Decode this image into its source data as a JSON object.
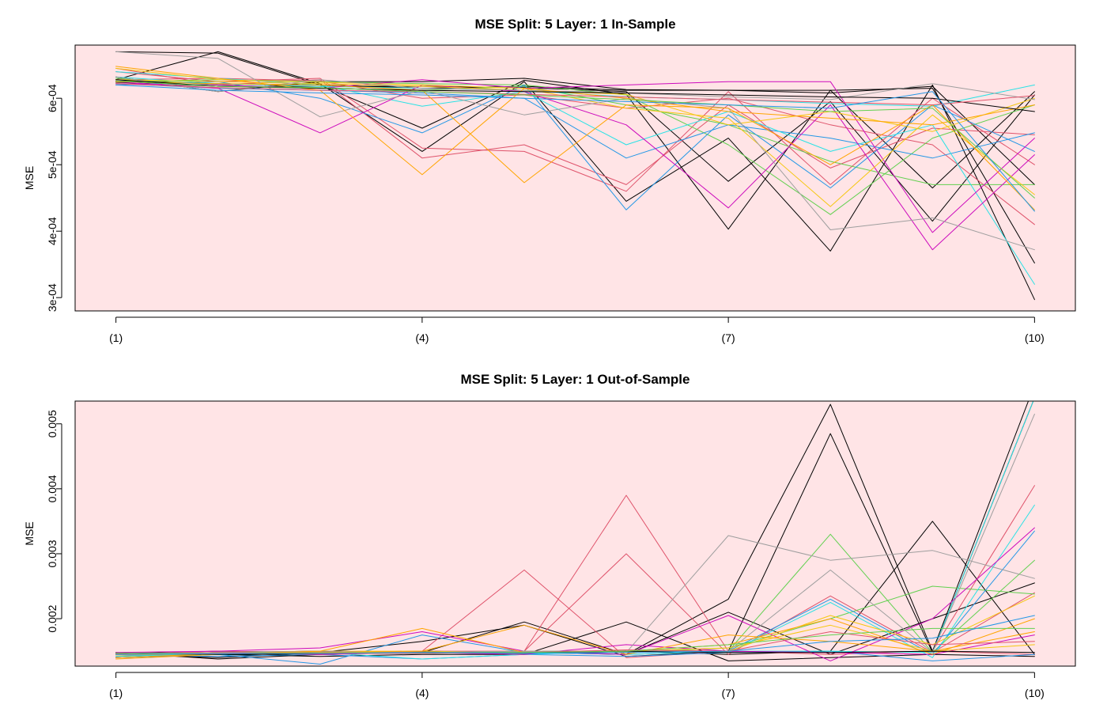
{
  "chart_data": [
    {
      "type": "line",
      "title": "MSE Split: 5 Layer: 1 In-Sample",
      "xlabel": "",
      "ylabel": "MSE",
      "x": [
        1,
        2,
        3,
        4,
        5,
        6,
        7,
        8,
        9,
        10
      ],
      "x_ticks": [
        1,
        4,
        7,
        10
      ],
      "x_tick_labels": [
        "(1)",
        "(4)",
        "(7)",
        "(10)"
      ],
      "xlim": [
        0.6,
        10.4
      ],
      "y_ticks": [
        0.0003,
        0.0004,
        0.0005,
        0.0006
      ],
      "y_tick_labels": [
        "3e-04",
        "4e-04",
        "5e-04",
        "6e-04"
      ],
      "ylim": [
        0.00028,
        0.00068
      ],
      "grid": false,
      "legend": "none",
      "background": "#FFE4E6",
      "series": [
        {
          "color": "#000000",
          "values": [
            0.00067,
            0.000668,
            0.00062,
            0.000555,
            0.000627,
            0.000606,
            0.000403,
            0.000612,
            0.000615,
            0.000352
          ]
        },
        {
          "color": "#000000",
          "values": [
            0.000628,
            0.00067,
            0.000622,
            0.00052,
            0.000625,
            0.000445,
            0.00054,
            0.00037,
            0.00062,
            0.000297
          ]
        },
        {
          "color": "#000000",
          "values": [
            0.000632,
            0.00061,
            0.000625,
            0.000625,
            0.00063,
            0.000613,
            0.000612,
            0.000612,
            0.000465,
            0.00061
          ]
        },
        {
          "color": "#000000",
          "values": [
            0.000624,
            0.000618,
            0.000618,
            0.000618,
            0.000616,
            0.00061,
            0.000475,
            0.000595,
            0.000415,
            0.000605
          ]
        },
        {
          "color": "#000000",
          "values": [
            0.000626,
            0.000622,
            0.00062,
            0.000615,
            0.000618,
            0.000612,
            0.000612,
            0.000608,
            0.000618,
            0.00047
          ]
        },
        {
          "color": "#DF536B",
          "values": [
            0.000645,
            0.00062,
            0.000628,
            0.00051,
            0.00053,
            0.00047,
            0.00059,
            0.000495,
            0.000555,
            0.000545
          ]
        },
        {
          "color": "#DF536B",
          "values": [
            0.00064,
            0.000625,
            0.00063,
            0.000525,
            0.00052,
            0.00046,
            0.00061,
            0.00047,
            0.0006,
            0.0005
          ]
        },
        {
          "color": "#DF536B",
          "values": [
            0.000628,
            0.00063,
            0.000626,
            0.0006,
            0.000605,
            0.000585,
            0.0006,
            0.00056,
            0.00053,
            0.00041
          ]
        },
        {
          "color": "#61D04F",
          "values": [
            0.000625,
            0.000628,
            0.000625,
            0.000622,
            0.00062,
            0.000605,
            0.00053,
            0.000425,
            0.00054,
            0.00059
          ]
        },
        {
          "color": "#61D04F",
          "values": [
            0.00063,
            0.00062,
            0.000615,
            0.000612,
            0.000618,
            0.00059,
            0.00056,
            0.000505,
            0.00047,
            0.00047
          ]
        },
        {
          "color": "#2297E6",
          "values": [
            0.00062,
            0.000625,
            0.0006,
            0.000548,
            0.00062,
            0.000432,
            0.000575,
            0.000465,
            0.00059,
            0.00052
          ]
        },
        {
          "color": "#2297E6",
          "values": [
            0.000622,
            0.000615,
            0.000612,
            0.000608,
            0.0006,
            0.00051,
            0.00056,
            0.00054,
            0.00051,
            0.000548
          ]
        },
        {
          "color": "#28E2E5",
          "values": [
            0.00064,
            0.00063,
            0.00062,
            0.000588,
            0.00061,
            0.00053,
            0.00058,
            0.00052,
            0.00056,
            0.00032
          ]
        },
        {
          "color": "#28E2E5",
          "values": [
            0.000632,
            0.000622,
            0.000618,
            0.000615,
            0.000612,
            0.000602,
            0.000598,
            0.000592,
            0.000588,
            0.00062
          ]
        },
        {
          "color": "#CD0BBC",
          "values": [
            0.000625,
            0.000615,
            0.000548,
            0.00062,
            0.00061,
            0.00056,
            0.000435,
            0.00059,
            0.000372,
            0.000515
          ]
        },
        {
          "color": "#CD0BBC",
          "values": [
            0.000622,
            0.00062,
            0.000615,
            0.000628,
            0.000615,
            0.00062,
            0.000625,
            0.000625,
            0.000398,
            0.00054
          ]
        },
        {
          "color": "#F5C710",
          "values": [
            0.000645,
            0.000628,
            0.000624,
            0.00062,
            0.000615,
            0.000585,
            0.00057,
            0.000437,
            0.000575,
            0.000455
          ]
        },
        {
          "color": "#F5C710",
          "values": [
            0.000628,
            0.000625,
            0.000622,
            0.000618,
            0.000612,
            0.000606,
            0.00056,
            0.00058,
            0.00055,
            0.0006
          ]
        },
        {
          "color": "#9E9E9E",
          "values": [
            0.00067,
            0.00066,
            0.000572,
            0.000612,
            0.000575,
            0.0006,
            0.000585,
            0.000402,
            0.00042,
            0.000372
          ]
        },
        {
          "color": "#9E9E9E",
          "values": [
            0.000632,
            0.00061,
            0.000628,
            0.000615,
            0.000612,
            0.000608,
            0.000602,
            0.000598,
            0.000622,
            0.000598
          ]
        },
        {
          "color": "#FFA500",
          "values": [
            0.000648,
            0.00063,
            0.000612,
            0.000485,
            0.000615,
            0.0006,
            0.00058,
            0.00057,
            0.00056,
            0.00059
          ]
        },
        {
          "color": "#FFA500",
          "values": [
            0.000625,
            0.000622,
            0.00062,
            0.000612,
            0.000473,
            0.00059,
            0.000585,
            0.0005,
            0.00059,
            0.000432
          ]
        },
        {
          "color": "#000000",
          "values": [
            0.000628,
            0.000618,
            0.000615,
            0.000612,
            0.00061,
            0.000608,
            0.000605,
            0.000602,
            0.0006,
            0.00058
          ]
        },
        {
          "color": "#DF536B",
          "values": [
            0.000622,
            0.000616,
            0.000612,
            0.00061,
            0.000606,
            0.000602,
            0.000598,
            0.000594,
            0.00059,
            0.000604
          ]
        },
        {
          "color": "#61D04F",
          "values": [
            0.000626,
            0.000618,
            0.000616,
            0.00061,
            0.000605,
            0.000598,
            0.00059,
            0.00058,
            0.000585,
            0.00045
          ]
        },
        {
          "color": "#2297E6",
          "values": [
            0.00062,
            0.000612,
            0.000608,
            0.000605,
            0.0006,
            0.000595,
            0.00059,
            0.000585,
            0.00061,
            0.00043
          ]
        }
      ]
    },
    {
      "type": "line",
      "title": "MSE Split: 5 Layer: 1 Out-of-Sample",
      "xlabel": "",
      "ylabel": "MSE",
      "x": [
        1,
        2,
        3,
        4,
        5,
        6,
        7,
        8,
        9,
        10
      ],
      "x_ticks": [
        1,
        4,
        7,
        10
      ],
      "x_tick_labels": [
        "(1)",
        "(4)",
        "(7)",
        "(10)"
      ],
      "xlim": [
        0.6,
        10.4
      ],
      "y_ticks": [
        0.002,
        0.003,
        0.004,
        0.005
      ],
      "y_tick_labels": [
        "0.002",
        "0.003",
        "0.004",
        "0.005"
      ],
      "ylim": [
        0.00127,
        0.00535
      ],
      "grid": false,
      "legend": "none",
      "background": "#FFE4E6",
      "series": [
        {
          "color": "#000000",
          "values": [
            0.00148,
            0.00138,
            0.00145,
            0.0015,
            0.00148,
            0.00145,
            0.0023,
            0.0053,
            0.0015,
            0.0056
          ]
        },
        {
          "color": "#000000",
          "values": [
            0.00145,
            0.0014,
            0.00148,
            0.00165,
            0.0019,
            0.00142,
            0.0015,
            0.00485,
            0.00148,
            0.0054
          ]
        },
        {
          "color": "#000000",
          "values": [
            0.00146,
            0.0015,
            0.00148,
            0.0015,
            0.00148,
            0.0015,
            0.00145,
            0.0015,
            0.0035,
            0.00145
          ]
        },
        {
          "color": "#000000",
          "values": [
            0.00145,
            0.00148,
            0.0015,
            0.00148,
            0.00195,
            0.00145,
            0.0021,
            0.00145,
            0.002,
            0.00255
          ]
        },
        {
          "color": "#000000",
          "values": [
            0.0014,
            0.00145,
            0.00142,
            0.00145,
            0.00145,
            0.00195,
            0.00135,
            0.0014,
            0.00145,
            0.00142
          ]
        },
        {
          "color": "#DF536B",
          "values": [
            0.00145,
            0.0015,
            0.00148,
            0.0015,
            0.00275,
            0.0014,
            0.0015,
            0.00145,
            0.0015,
            0.00145
          ]
        },
        {
          "color": "#DF536B",
          "values": [
            0.00142,
            0.00148,
            0.0015,
            0.00148,
            0.0015,
            0.0039,
            0.0015,
            0.00148,
            0.0015,
            0.00405
          ]
        },
        {
          "color": "#DF536B",
          "values": [
            0.00146,
            0.00148,
            0.00146,
            0.0015,
            0.0015,
            0.003,
            0.00145,
            0.00235,
            0.00148,
            0.0024
          ]
        },
        {
          "color": "#61D04F",
          "values": [
            0.00145,
            0.00148,
            0.00148,
            0.00148,
            0.0015,
            0.0015,
            0.0015,
            0.0033,
            0.00148,
            0.0029
          ]
        },
        {
          "color": "#61D04F",
          "values": [
            0.00146,
            0.00145,
            0.00147,
            0.00148,
            0.00146,
            0.00148,
            0.00155,
            0.002,
            0.0025,
            0.00238
          ]
        },
        {
          "color": "#2297E6",
          "values": [
            0.0014,
            0.00145,
            0.0013,
            0.00175,
            0.00148,
            0.00145,
            0.0015,
            0.0023,
            0.00145,
            0.00335
          ]
        },
        {
          "color": "#2297E6",
          "values": [
            0.00144,
            0.00142,
            0.00145,
            0.00138,
            0.00145,
            0.00142,
            0.00148,
            0.0015,
            0.00135,
            0.00145
          ]
        },
        {
          "color": "#28E2E5",
          "values": [
            0.00142,
            0.00146,
            0.00148,
            0.00138,
            0.00145,
            0.0015,
            0.00148,
            0.00225,
            0.0014,
            0.00375
          ]
        },
        {
          "color": "#28E2E5",
          "values": [
            0.00146,
            0.00145,
            0.00148,
            0.00148,
            0.0015,
            0.00145,
            0.0015,
            0.0015,
            0.00148,
            0.0054
          ]
        },
        {
          "color": "#CD0BBC",
          "values": [
            0.00148,
            0.0015,
            0.00155,
            0.0018,
            0.0015,
            0.00145,
            0.00205,
            0.00135,
            0.002,
            0.0034
          ]
        },
        {
          "color": "#CD0BBC",
          "values": [
            0.00145,
            0.00148,
            0.00145,
            0.00148,
            0.00145,
            0.0016,
            0.0015,
            0.00148,
            0.00145,
            0.00175
          ]
        },
        {
          "color": "#F5C710",
          "values": [
            0.00145,
            0.00148,
            0.0015,
            0.0015,
            0.00148,
            0.0015,
            0.00155,
            0.0019,
            0.0015,
            0.0016
          ]
        },
        {
          "color": "#F5C710",
          "values": [
            0.00144,
            0.00146,
            0.00148,
            0.00148,
            0.0015,
            0.00148,
            0.0015,
            0.00205,
            0.0016,
            0.00235
          ]
        },
        {
          "color": "#9E9E9E",
          "values": [
            0.00146,
            0.00148,
            0.0015,
            0.00148,
            0.0015,
            0.00148,
            0.00328,
            0.0029,
            0.00305,
            0.00262
          ]
        },
        {
          "color": "#9E9E9E",
          "values": [
            0.00145,
            0.00146,
            0.00148,
            0.00146,
            0.0015,
            0.0015,
            0.0015,
            0.00275,
            0.00148,
            0.00515
          ]
        },
        {
          "color": "#FFA500",
          "values": [
            0.00138,
            0.00145,
            0.0015,
            0.00185,
            0.00148,
            0.0015,
            0.0016,
            0.002,
            0.00145,
            0.002
          ]
        },
        {
          "color": "#FFA500",
          "values": [
            0.0014,
            0.00146,
            0.00148,
            0.0015,
            0.0019,
            0.00145,
            0.00175,
            0.00165,
            0.0015,
            0.0018
          ]
        },
        {
          "color": "#000000",
          "values": [
            0.00147,
            0.00145,
            0.00146,
            0.00148,
            0.00147,
            0.0015,
            0.00148,
            0.00148,
            0.0015,
            0.00148
          ]
        },
        {
          "color": "#DF536B",
          "values": [
            0.00146,
            0.00147,
            0.00146,
            0.00147,
            0.00148,
            0.00152,
            0.0015,
            0.0018,
            0.0016,
            0.00165
          ]
        },
        {
          "color": "#61D04F",
          "values": [
            0.00147,
            0.00146,
            0.00147,
            0.00148,
            0.00148,
            0.0015,
            0.0016,
            0.00175,
            0.00185,
            0.00185
          ]
        },
        {
          "color": "#2297E6",
          "values": [
            0.00145,
            0.00146,
            0.00147,
            0.00148,
            0.00147,
            0.00148,
            0.0015,
            0.00165,
            0.0017,
            0.00205
          ]
        }
      ]
    }
  ]
}
